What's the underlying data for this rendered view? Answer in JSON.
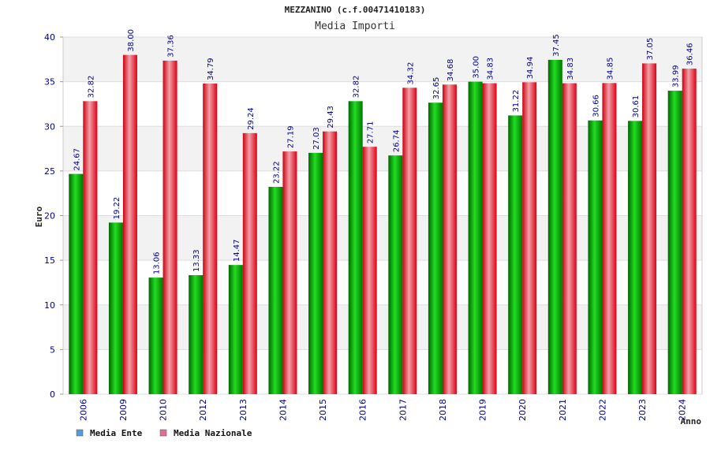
{
  "chart_data": {
    "type": "bar",
    "title": "MEZZANINO (c.f.00471410183)",
    "subtitle": "Media Importi",
    "xlabel": "Anno",
    "ylabel": "Euro",
    "ylim": [
      0,
      40
    ],
    "yticks": [
      0,
      5,
      10,
      15,
      20,
      25,
      30,
      35,
      40
    ],
    "grid": true,
    "legend_position": "bottom-left",
    "categories": [
      "2006",
      "2009",
      "2010",
      "2012",
      "2013",
      "2014",
      "2015",
      "2016",
      "2017",
      "2018",
      "2019",
      "2020",
      "2021",
      "2022",
      "2023",
      "2024"
    ],
    "series": [
      {
        "name": "Media Ente",
        "values": [
          24.67,
          19.22,
          13.06,
          13.33,
          14.47,
          23.22,
          27.03,
          32.82,
          26.74,
          32.65,
          35.0,
          31.22,
          37.45,
          30.66,
          30.61,
          33.99
        ],
        "labels": [
          "24.67",
          "19.22",
          "13.06",
          "13.33",
          "14.47",
          "23.22",
          "27.03",
          "32.82",
          "26.74",
          "32.65",
          "35.00",
          "31.22",
          "37.45",
          "30.66",
          "30.61",
          "33.99"
        ],
        "color": "#00aa00",
        "legend_color": "#5b9bd5"
      },
      {
        "name": "Media Nazionale",
        "values": [
          32.82,
          38.0,
          37.36,
          34.79,
          29.24,
          27.19,
          29.43,
          27.71,
          34.32,
          34.68,
          34.83,
          34.94,
          34.83,
          34.85,
          37.05,
          36.46
        ],
        "labels": [
          "32.82",
          "38.00",
          "37.36",
          "34.79",
          "29.24",
          "27.19",
          "29.43",
          "27.71",
          "34.32",
          "34.68",
          "34.83",
          "34.94",
          "34.83",
          "34.85",
          "37.05",
          "36.46"
        ],
        "color": "#e0101a",
        "legend_color": "#e07090"
      }
    ]
  }
}
